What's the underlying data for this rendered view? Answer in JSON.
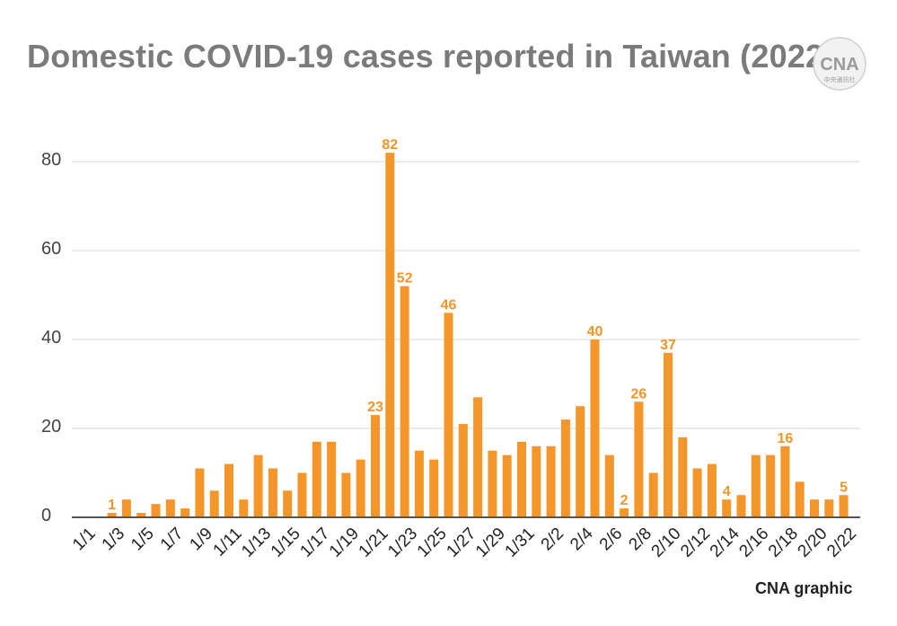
{
  "header": {
    "title": "Domestic COVID-19 cases reported in Taiwan (2022)",
    "logo_text": "CNA",
    "logo_subtext": "中央通訊社"
  },
  "footer": {
    "credit": "CNA graphic"
  },
  "colors": {
    "bar": "#f5962b",
    "label": "#f0962a",
    "grid": "#d9d9d9",
    "axis": "#555555"
  },
  "chart_data": {
    "type": "bar",
    "title": "Domestic COVID-19 cases reported in Taiwan (2022)",
    "xlabel": "",
    "ylabel": "",
    "ylim": [
      0,
      80
    ],
    "yticks": [
      0,
      20,
      40,
      60,
      80
    ],
    "grid": true,
    "categories": [
      "1/1",
      "1/2",
      "1/3",
      "1/4",
      "1/5",
      "1/6",
      "1/7",
      "1/8",
      "1/9",
      "1/10",
      "1/11",
      "1/12",
      "1/13",
      "1/14",
      "1/15",
      "1/16",
      "1/17",
      "1/18",
      "1/19",
      "1/20",
      "1/21",
      "1/22",
      "1/23",
      "1/24",
      "1/25",
      "1/26",
      "1/27",
      "1/28",
      "1/29",
      "1/30",
      "1/31",
      "2/1",
      "2/2",
      "2/3",
      "2/4",
      "2/5",
      "2/6",
      "2/7",
      "2/8",
      "2/9",
      "2/10",
      "2/11",
      "2/12",
      "2/13",
      "2/14",
      "2/15",
      "2/16",
      "2/17",
      "2/18",
      "2/19",
      "2/20",
      "2/21",
      "2/22"
    ],
    "tick_labels": [
      "1/1",
      "1/3",
      "1/5",
      "1/7",
      "1/9",
      "1/11",
      "1/13",
      "1/15",
      "1/17",
      "1/19",
      "1/21",
      "1/23",
      "1/25",
      "1/27",
      "1/29",
      "1/31",
      "2/2",
      "2/4",
      "2/6",
      "2/8",
      "2/10",
      "2/12",
      "2/14",
      "2/16",
      "2/18",
      "2/20",
      "2/22"
    ],
    "values": [
      0,
      0,
      1,
      4,
      1,
      3,
      4,
      2,
      11,
      6,
      12,
      4,
      14,
      11,
      6,
      10,
      17,
      17,
      10,
      13,
      23,
      82,
      52,
      15,
      13,
      46,
      21,
      27,
      15,
      14,
      17,
      16,
      16,
      22,
      25,
      40,
      14,
      2,
      26,
      10,
      37,
      18,
      11,
      12,
      4,
      5,
      14,
      14,
      16,
      8,
      4,
      4,
      5
    ],
    "data_labels": [
      {
        "category": "1/3",
        "value": 1
      },
      {
        "category": "1/21",
        "value": 23
      },
      {
        "category": "1/22",
        "value": 82
      },
      {
        "category": "1/23",
        "value": 52
      },
      {
        "category": "1/26",
        "value": 46
      },
      {
        "category": "2/5",
        "value": 40
      },
      {
        "category": "2/7",
        "value": 2
      },
      {
        "category": "2/8",
        "value": 26
      },
      {
        "category": "2/10",
        "value": 37
      },
      {
        "category": "2/14",
        "value": 4
      },
      {
        "category": "2/18",
        "value": 16
      },
      {
        "category": "2/22",
        "value": 5
      }
    ]
  }
}
